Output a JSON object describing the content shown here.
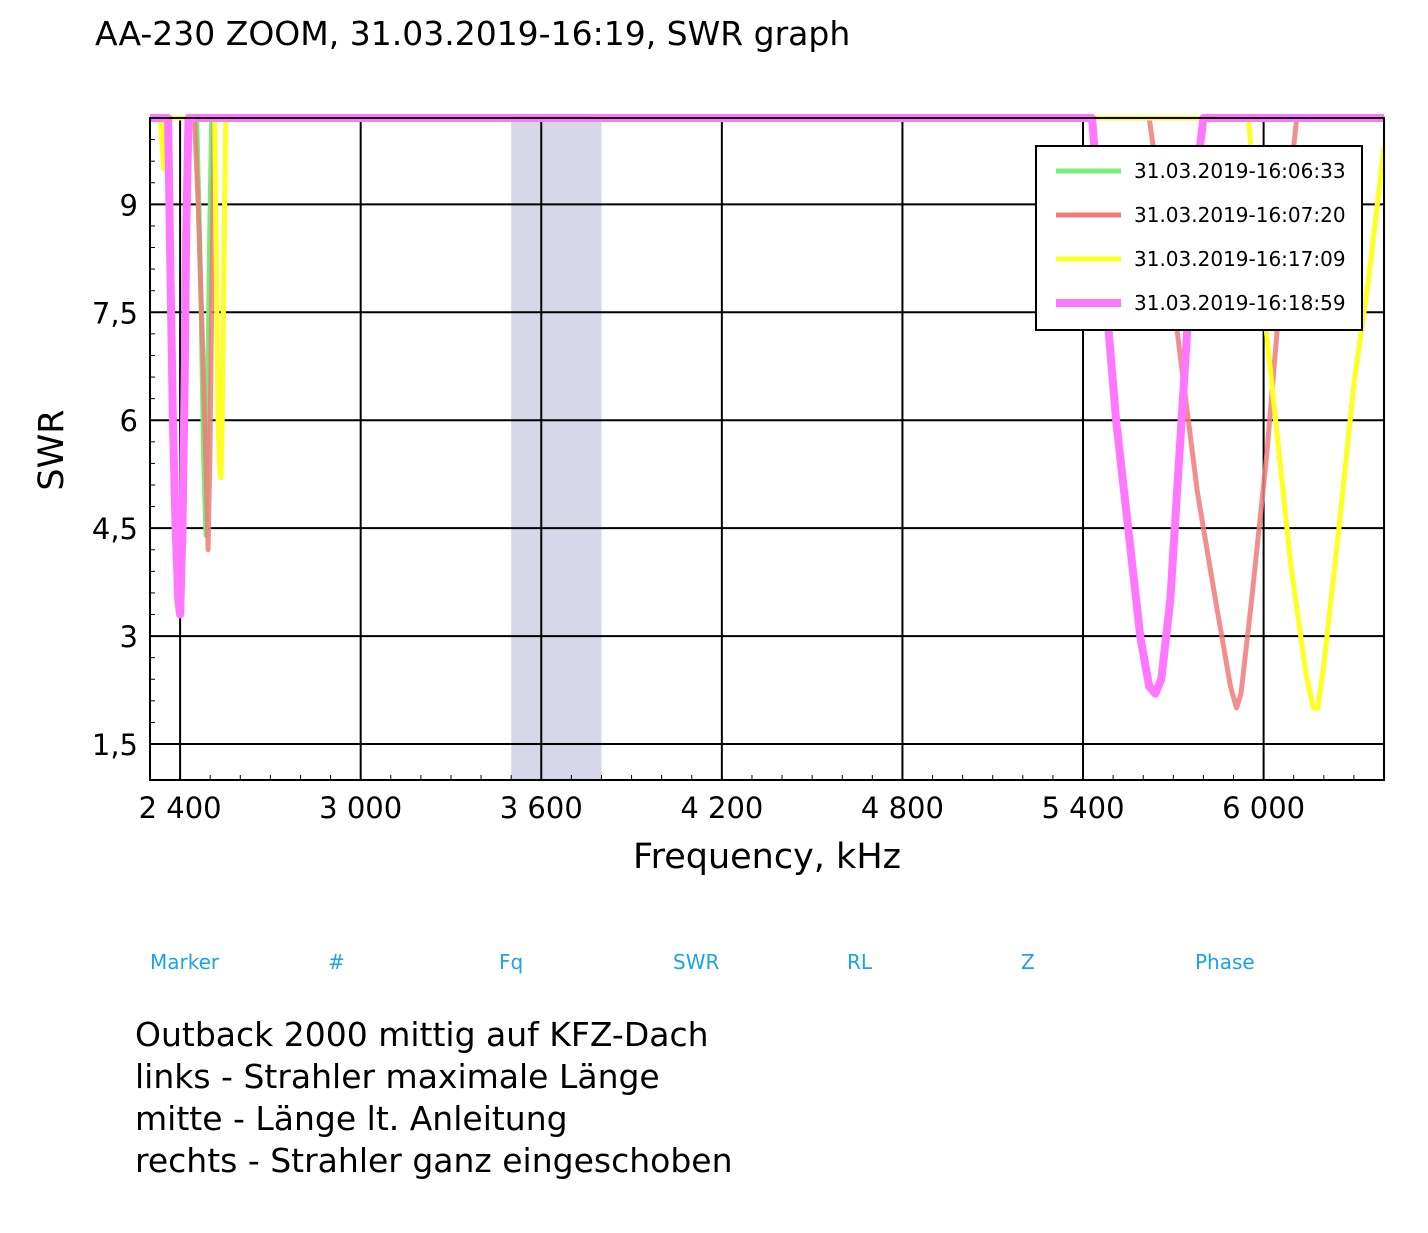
{
  "title": "AA-230 ZOOM, 31.03.2019-16:19, SWR graph",
  "chart_data": {
    "type": "line",
    "xlabel": "Frequency, kHz",
    "ylabel": "SWR",
    "xlim": [
      2300,
      6400
    ],
    "ylim": [
      1,
      10.2
    ],
    "x_ticks": [
      2400,
      3000,
      3600,
      4200,
      4800,
      5400,
      6000
    ],
    "x_tick_labels": [
      "2 400",
      "3 000",
      "3 600",
      "4 200",
      "4 800",
      "5 400",
      "6 000"
    ],
    "y_ticks": [
      1.5,
      3,
      4.5,
      6,
      7.5,
      9
    ],
    "y_tick_labels": [
      "1,5",
      "3",
      "4,5",
      "6",
      "7,5",
      "9"
    ],
    "grid": true,
    "legend_position": "top-right",
    "band_highlight": {
      "x_from": 3500,
      "x_to": 3800,
      "color": "#d6d8ea"
    },
    "series": [
      {
        "name": "31.03.2019-16:06:33",
        "color": "#77ee77",
        "points": [
          [
            2300,
            10.2
          ],
          [
            2455,
            10.2
          ],
          [
            2462,
            9
          ],
          [
            2470,
            7.5
          ],
          [
            2478,
            5.5
          ],
          [
            2486,
            4.4
          ],
          [
            2492,
            6.5
          ],
          [
            2498,
            8.5
          ],
          [
            2505,
            10.2
          ],
          [
            6400,
            10.2
          ]
        ]
      },
      {
        "name": "31.03.2019-16:07:20",
        "color": "#ef7b7b",
        "points": [
          [
            2300,
            10.2
          ],
          [
            2448,
            10.2
          ],
          [
            2460,
            9
          ],
          [
            2475,
            7
          ],
          [
            2485,
            5.5
          ],
          [
            2493,
            4.2
          ],
          [
            2499,
            5.5
          ],
          [
            2506,
            8
          ],
          [
            2513,
            10.2
          ],
          [
            5620,
            10.2
          ],
          [
            5660,
            9
          ],
          [
            5720,
            7
          ],
          [
            5780,
            5
          ],
          [
            5840,
            3.5
          ],
          [
            5890,
            2.3
          ],
          [
            5910,
            2
          ],
          [
            5925,
            2.2
          ],
          [
            5960,
            3.5
          ],
          [
            6010,
            5.5
          ],
          [
            6050,
            7.5
          ],
          [
            6080,
            9
          ],
          [
            6110,
            10.2
          ],
          [
            6400,
            10.2
          ]
        ]
      },
      {
        "name": "31.03.2019-16:17:09",
        "color": "#ffff22",
        "points": [
          [
            2300,
            10.2
          ],
          [
            2335,
            10.2
          ],
          [
            2345,
            9.5
          ],
          [
            2355,
            10.2
          ],
          [
            2515,
            10.2
          ],
          [
            2518,
            9
          ],
          [
            2522,
            7.5
          ],
          [
            2526,
            6
          ],
          [
            2531,
            5.4
          ],
          [
            2536,
            5.2
          ],
          [
            2540,
            6
          ],
          [
            2544,
            7.5
          ],
          [
            2548,
            9
          ],
          [
            2552,
            10.2
          ],
          [
            5950,
            10.2
          ],
          [
            5990,
            8
          ],
          [
            6040,
            6
          ],
          [
            6090,
            4
          ],
          [
            6140,
            2.5
          ],
          [
            6165,
            2
          ],
          [
            6180,
            2
          ],
          [
            6200,
            2.6
          ],
          [
            6250,
            4.5
          ],
          [
            6300,
            6.5
          ],
          [
            6350,
            8
          ],
          [
            6400,
            9.8
          ]
        ]
      },
      {
        "name": "31.03.2019-16:18:59",
        "color": "#ff77ff",
        "points": [
          [
            2300,
            10.2
          ],
          [
            2360,
            10.2
          ],
          [
            2368,
            8
          ],
          [
            2376,
            6
          ],
          [
            2385,
            4.5
          ],
          [
            2394,
            3.5
          ],
          [
            2400,
            3.3
          ],
          [
            2408,
            4.5
          ],
          [
            2415,
            6.5
          ],
          [
            2420,
            8.5
          ],
          [
            2428,
            10.2
          ],
          [
            5430,
            10.2
          ],
          [
            5470,
            8
          ],
          [
            5510,
            6
          ],
          [
            5550,
            4.5
          ],
          [
            5590,
            3
          ],
          [
            5620,
            2.3
          ],
          [
            5640,
            2.2
          ],
          [
            5660,
            2.4
          ],
          [
            5690,
            3.5
          ],
          [
            5720,
            5.5
          ],
          [
            5750,
            7.5
          ],
          [
            5780,
            9.5
          ],
          [
            5800,
            10.2
          ],
          [
            6400,
            10.2
          ]
        ]
      }
    ]
  },
  "markers_table": {
    "headers": [
      "Marker",
      "#",
      "Fq",
      "SWR",
      "RL",
      "Z",
      "Phase"
    ]
  },
  "notes": [
    "Outback 2000 mittig auf KFZ-Dach",
    "links - Strahler maximale Länge",
    "mitte - Länge lt. Anleitung",
    "rechts - Strahler ganz eingeschoben"
  ]
}
